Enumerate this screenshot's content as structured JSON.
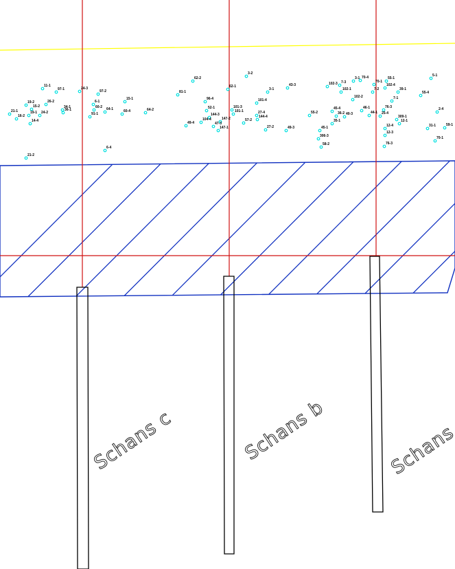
{
  "colors": {
    "background": "#ffffff",
    "boundary_line": "#ffff00",
    "grid_line": "#d01010",
    "hatch": "#1030c0",
    "point_marker": "#00e0e0",
    "trench_outline": "#000000",
    "label": "#000000"
  },
  "trenches": [
    {
      "id": "c",
      "label": "Schans c"
    },
    {
      "id": "b",
      "label": "Schans b"
    },
    {
      "id": "a",
      "label": "Schans a"
    }
  ],
  "points": [
    {
      "label": "11-1"
    },
    {
      "label": "97-1"
    },
    {
      "label": "24-3"
    },
    {
      "label": "97-2"
    },
    {
      "label": "19-2"
    },
    {
      "label": "15-2"
    },
    {
      "label": "26-2"
    },
    {
      "label": "34-1"
    },
    {
      "label": "21-1"
    },
    {
      "label": "16-2"
    },
    {
      "label": "19-1"
    },
    {
      "label": "24-2"
    },
    {
      "label": "14-4"
    },
    {
      "label": "36-1"
    },
    {
      "label": "6-1"
    },
    {
      "label": "60-2"
    },
    {
      "label": "91-1"
    },
    {
      "label": "64-1"
    },
    {
      "label": "15-1"
    },
    {
      "label": "60-4"
    },
    {
      "label": "64-2"
    },
    {
      "label": "21-2"
    },
    {
      "label": "6-4"
    },
    {
      "label": "62-2"
    },
    {
      "label": "81-1"
    },
    {
      "label": "3-2"
    },
    {
      "label": "62-1"
    },
    {
      "label": "3-1"
    },
    {
      "label": "43-3"
    },
    {
      "label": "96-4"
    },
    {
      "label": "52-1"
    },
    {
      "label": "101-4"
    },
    {
      "label": "101-3"
    },
    {
      "label": "101-1"
    },
    {
      "label": "144-3"
    },
    {
      "label": "27-4"
    },
    {
      "label": "144-4"
    },
    {
      "label": "147-2"
    },
    {
      "label": "104-4"
    },
    {
      "label": "47-3"
    },
    {
      "label": "57-2"
    },
    {
      "label": "49-4"
    },
    {
      "label": "147-1"
    },
    {
      "label": "27-2"
    },
    {
      "label": "49-3"
    },
    {
      "label": "102-3"
    },
    {
      "label": "7-3"
    },
    {
      "label": "3-1"
    },
    {
      "label": "70-4"
    },
    {
      "label": "102-1"
    },
    {
      "label": "70-1"
    },
    {
      "label": "55-1"
    },
    {
      "label": "102-4"
    },
    {
      "label": "7-2"
    },
    {
      "label": "39-1"
    },
    {
      "label": "5-1"
    },
    {
      "label": "55-4"
    },
    {
      "label": "102-2"
    },
    {
      "label": "7-1"
    },
    {
      "label": "45-4"
    },
    {
      "label": "36-2"
    },
    {
      "label": "40-3"
    },
    {
      "label": "46-1"
    },
    {
      "label": "44-1"
    },
    {
      "label": "76-3"
    },
    {
      "label": "25-4"
    },
    {
      "label": "35-1"
    },
    {
      "label": "309-1"
    },
    {
      "label": "12-1"
    },
    {
      "label": "12-4"
    },
    {
      "label": "45-1"
    },
    {
      "label": "12-3"
    },
    {
      "label": "306-3"
    },
    {
      "label": "58-2"
    },
    {
      "label": "76-3"
    },
    {
      "label": "31-1"
    },
    {
      "label": "59-1"
    },
    {
      "label": "70-1"
    },
    {
      "label": "2-4"
    },
    {
      "label": "55-2"
    }
  ]
}
